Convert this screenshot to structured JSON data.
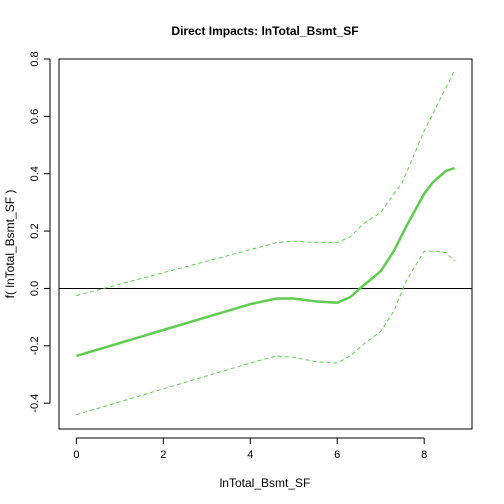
{
  "chart_data": {
    "type": "line",
    "title": "Direct Impacts: lnTotal_Bsmt_SF",
    "xlabel": "lnTotal_Bsmt_SF",
    "ylabel": "f( lnTotal_Bsmt_SF )",
    "xlim": [
      -0.4,
      9.1
    ],
    "ylim": [
      -0.49,
      0.8
    ],
    "xticks": [
      0,
      2,
      4,
      6,
      8
    ],
    "xtick_labels": [
      "0",
      "2",
      "4",
      "6",
      "8"
    ],
    "yticks": [
      -0.4,
      -0.2,
      0.0,
      0.2,
      0.4,
      0.6,
      0.8
    ],
    "ytick_labels": [
      "-0.4",
      "-0.2",
      "0.0",
      "0.2",
      "0.4",
      "0.6",
      "0.8"
    ],
    "reference_line": 0,
    "grid": false,
    "colors": {
      "fit": "#5fcc4f",
      "band": "#5fcc4f",
      "reference": "#000000"
    },
    "series": [
      {
        "role": "fit",
        "style": "solid",
        "x": [
          0,
          1,
          2,
          3,
          4,
          4.6,
          5,
          5.5,
          6,
          6.3,
          6.6,
          7,
          7.3,
          7.6,
          8,
          8.2,
          8.5,
          8.7
        ],
        "y": [
          -0.235,
          -0.19,
          -0.145,
          -0.1,
          -0.055,
          -0.035,
          -0.035,
          -0.045,
          -0.05,
          -0.03,
          0.01,
          0.06,
          0.13,
          0.22,
          0.33,
          0.37,
          0.41,
          0.42
        ]
      },
      {
        "role": "upper",
        "style": "dashed",
        "x": [
          0,
          1,
          2,
          3,
          4,
          4.6,
          5,
          5.5,
          6,
          6.3,
          6.6,
          7,
          7.5,
          8,
          8.5,
          8.7
        ],
        "y": [
          -0.025,
          0.015,
          0.055,
          0.095,
          0.135,
          0.16,
          0.165,
          0.16,
          0.16,
          0.18,
          0.225,
          0.265,
          0.37,
          0.55,
          0.7,
          0.76
        ]
      },
      {
        "role": "lower",
        "style": "dashed",
        "x": [
          0,
          1,
          2,
          3,
          4,
          4.6,
          5,
          5.5,
          6,
          6.3,
          6.6,
          7,
          7.3,
          7.6,
          8,
          8.3,
          8.5,
          8.7
        ],
        "y": [
          -0.44,
          -0.395,
          -0.35,
          -0.305,
          -0.26,
          -0.235,
          -0.24,
          -0.255,
          -0.26,
          -0.235,
          -0.195,
          -0.15,
          -0.08,
          0.03,
          0.13,
          0.13,
          0.125,
          0.095
        ]
      }
    ]
  }
}
